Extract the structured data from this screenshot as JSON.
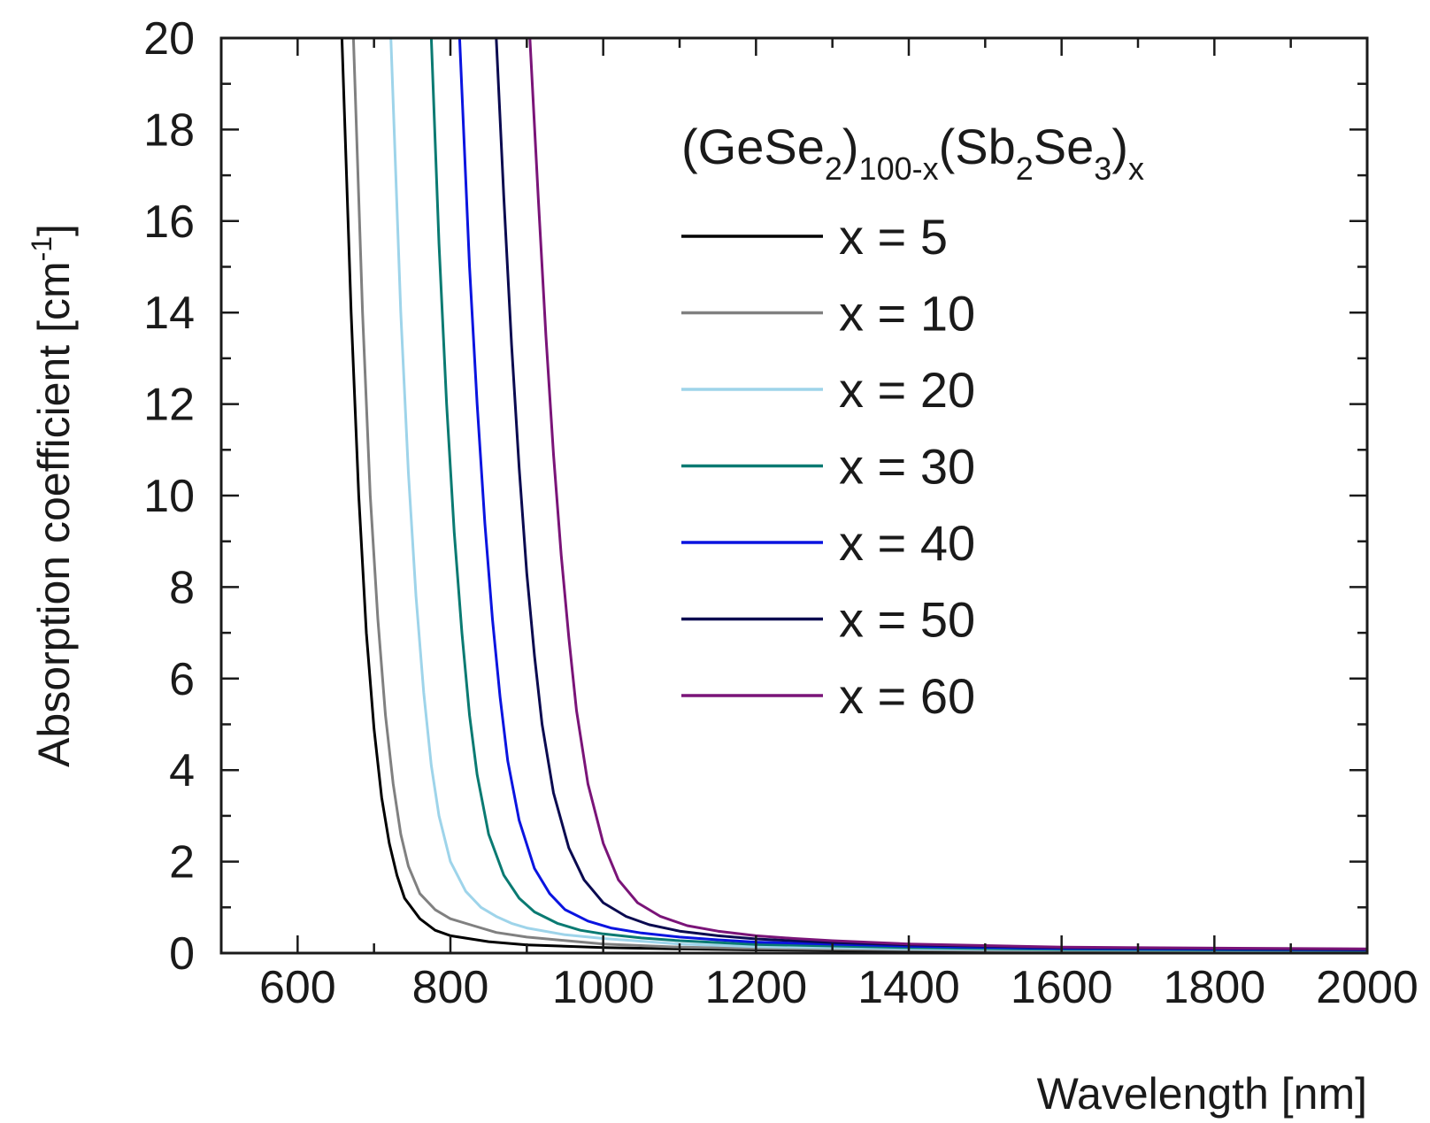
{
  "chart_data": {
    "type": "line",
    "xlabel": "Wavelength [nm]",
    "ylabel_main": "Absorption coefficient [cm",
    "ylabel_sup": "-1",
    "ylabel_close": "]",
    "xlim": [
      500,
      2000
    ],
    "ylim": [
      0,
      20
    ],
    "xticks": [
      600,
      800,
      1000,
      1200,
      1400,
      1600,
      1800,
      2000
    ],
    "yticks": [
      0,
      2,
      4,
      6,
      8,
      10,
      12,
      14,
      16,
      18,
      20
    ],
    "grid": false,
    "legend_placement": "top-right",
    "legend_title": {
      "p1": "(GeSe",
      "s1": "2",
      "p2": ")",
      "s2": "100-x",
      "p3": "(Sb",
      "s3": "2",
      "p4": "Se",
      "s4": "3",
      "p5": ")",
      "s5": "x"
    },
    "series": [
      {
        "name": "x = 5",
        "color": "#000000",
        "x": [
          658,
          670,
          680,
          690,
          700,
          710,
          720,
          730,
          740,
          760,
          780,
          800,
          850,
          900,
          1000,
          1100,
          1200,
          1400,
          1600,
          2000
        ],
        "y": [
          20,
          14,
          10,
          7,
          4.9,
          3.4,
          2.4,
          1.7,
          1.2,
          0.75,
          0.5,
          0.38,
          0.25,
          0.18,
          0.12,
          0.09,
          0.07,
          0.05,
          0.04,
          0.03
        ]
      },
      {
        "name": "x = 10",
        "color": "#808080",
        "x": [
          673,
          685,
          695,
          705,
          715,
          725,
          735,
          745,
          760,
          780,
          800,
          830,
          860,
          900,
          1000,
          1100,
          1200,
          1400,
          1600,
          2000
        ],
        "y": [
          20,
          14,
          10,
          7.3,
          5.2,
          3.7,
          2.6,
          1.9,
          1.3,
          0.95,
          0.75,
          0.6,
          0.45,
          0.35,
          0.2,
          0.13,
          0.1,
          0.07,
          0.05,
          0.04
        ]
      },
      {
        "name": "x = 20",
        "color": "#9ed4ea",
        "x": [
          722,
          735,
          745,
          755,
          765,
          775,
          785,
          800,
          820,
          840,
          860,
          880,
          900,
          950,
          1000,
          1100,
          1200,
          1400,
          1600,
          2000
        ],
        "y": [
          20,
          14,
          10.5,
          7.8,
          5.7,
          4.1,
          3,
          2,
          1.35,
          1,
          0.8,
          0.65,
          0.55,
          0.4,
          0.32,
          0.2,
          0.14,
          0.09,
          0.07,
          0.05
        ]
      },
      {
        "name": "x = 30",
        "color": "#0a7a72",
        "x": [
          775,
          785,
          795,
          805,
          815,
          825,
          835,
          850,
          870,
          890,
          910,
          940,
          970,
          1000,
          1050,
          1100,
          1200,
          1400,
          1600,
          2000
        ],
        "y": [
          20,
          15.5,
          12,
          9.2,
          7,
          5.2,
          3.9,
          2.6,
          1.7,
          1.2,
          0.9,
          0.65,
          0.5,
          0.42,
          0.33,
          0.27,
          0.19,
          0.12,
          0.08,
          0.06
        ]
      },
      {
        "name": "x = 40",
        "color": "#0a14e0",
        "x": [
          812,
          825,
          835,
          845,
          855,
          865,
          875,
          890,
          910,
          930,
          950,
          980,
          1010,
          1050,
          1100,
          1150,
          1200,
          1400,
          1600,
          2000
        ],
        "y": [
          20,
          15,
          12,
          9.4,
          7.3,
          5.6,
          4.2,
          2.9,
          1.85,
          1.3,
          0.95,
          0.7,
          0.55,
          0.44,
          0.35,
          0.29,
          0.24,
          0.15,
          0.1,
          0.07
        ]
      },
      {
        "name": "x = 50",
        "color": "#0a0a50",
        "x": [
          860,
          870,
          880,
          890,
          900,
          910,
          920,
          935,
          955,
          975,
          1000,
          1030,
          1060,
          1100,
          1150,
          1200,
          1300,
          1400,
          1600,
          2000
        ],
        "y": [
          20,
          16.5,
          13.3,
          10.6,
          8.3,
          6.5,
          5,
          3.5,
          2.3,
          1.6,
          1.1,
          0.8,
          0.62,
          0.48,
          0.38,
          0.31,
          0.23,
          0.18,
          0.12,
          0.08
        ]
      },
      {
        "name": "x = 60",
        "color": "#7a1478",
        "x": [
          904,
          915,
          925,
          935,
          945,
          955,
          965,
          980,
          1000,
          1020,
          1045,
          1075,
          1110,
          1150,
          1200,
          1250,
          1300,
          1400,
          1600,
          2000
        ],
        "y": [
          20,
          16.5,
          13.5,
          10.9,
          8.7,
          6.9,
          5.3,
          3.7,
          2.4,
          1.6,
          1.1,
          0.8,
          0.6,
          0.48,
          0.38,
          0.32,
          0.27,
          0.2,
          0.13,
          0.09
        ]
      }
    ]
  }
}
